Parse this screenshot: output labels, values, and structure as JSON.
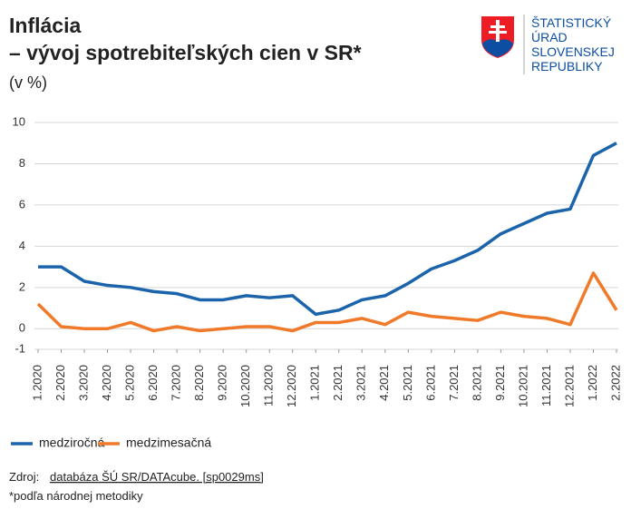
{
  "chart_data": {
    "type": "line",
    "title": "Inflácia",
    "subtitle": "– vývoj spotrebiteľských cien v SR*",
    "unit": "(v %)",
    "categories": [
      "1.2020",
      "2.2020",
      "3.2020",
      "4.2020",
      "5.2020",
      "6.2020",
      "7.2020",
      "8.2020",
      "9.2020",
      "10.2020",
      "11.2020",
      "12.2020",
      "1.2021",
      "2.2021",
      "3.2021",
      "4.2021",
      "5.2021",
      "6.2021",
      "7.2021",
      "8.2021",
      "9.2021",
      "10.2021",
      "11.2021",
      "12.2021",
      "1.2022",
      "2.2022"
    ],
    "series": [
      {
        "name": "medziročná",
        "color": "#1b64ab",
        "values": [
          3.0,
          3.0,
          2.3,
          2.1,
          2.0,
          1.8,
          1.7,
          1.4,
          1.4,
          1.6,
          1.5,
          1.6,
          0.7,
          0.9,
          1.4,
          1.6,
          2.2,
          2.9,
          3.3,
          3.8,
          4.6,
          5.1,
          5.6,
          5.8,
          8.4,
          9.0
        ]
      },
      {
        "name": "medzimesačná",
        "color": "#f07a2a",
        "values": [
          1.2,
          0.1,
          0.0,
          0.0,
          0.3,
          -0.1,
          0.1,
          -0.1,
          0.0,
          0.1,
          0.1,
          -0.1,
          0.3,
          0.3,
          0.5,
          0.2,
          0.8,
          0.6,
          0.5,
          0.4,
          0.8,
          0.6,
          0.5,
          0.2,
          2.7,
          0.9
        ]
      }
    ],
    "ylim": [
      -1,
      10
    ],
    "yticks": [
      -1,
      0,
      2,
      4,
      6,
      8,
      10
    ],
    "grid": true,
    "legend": "bottom"
  },
  "logo": {
    "lines": [
      "ŠTATISTICKÝ",
      "ÚRAD",
      "SLOVENSKEJ",
      "REPUBLIKY"
    ]
  },
  "source": {
    "prefix": "Zdroj:",
    "link": "databáza ŠÚ SR/DATAcube. [sp0029ms]"
  },
  "footnote": "*podľa národnej metodiky"
}
